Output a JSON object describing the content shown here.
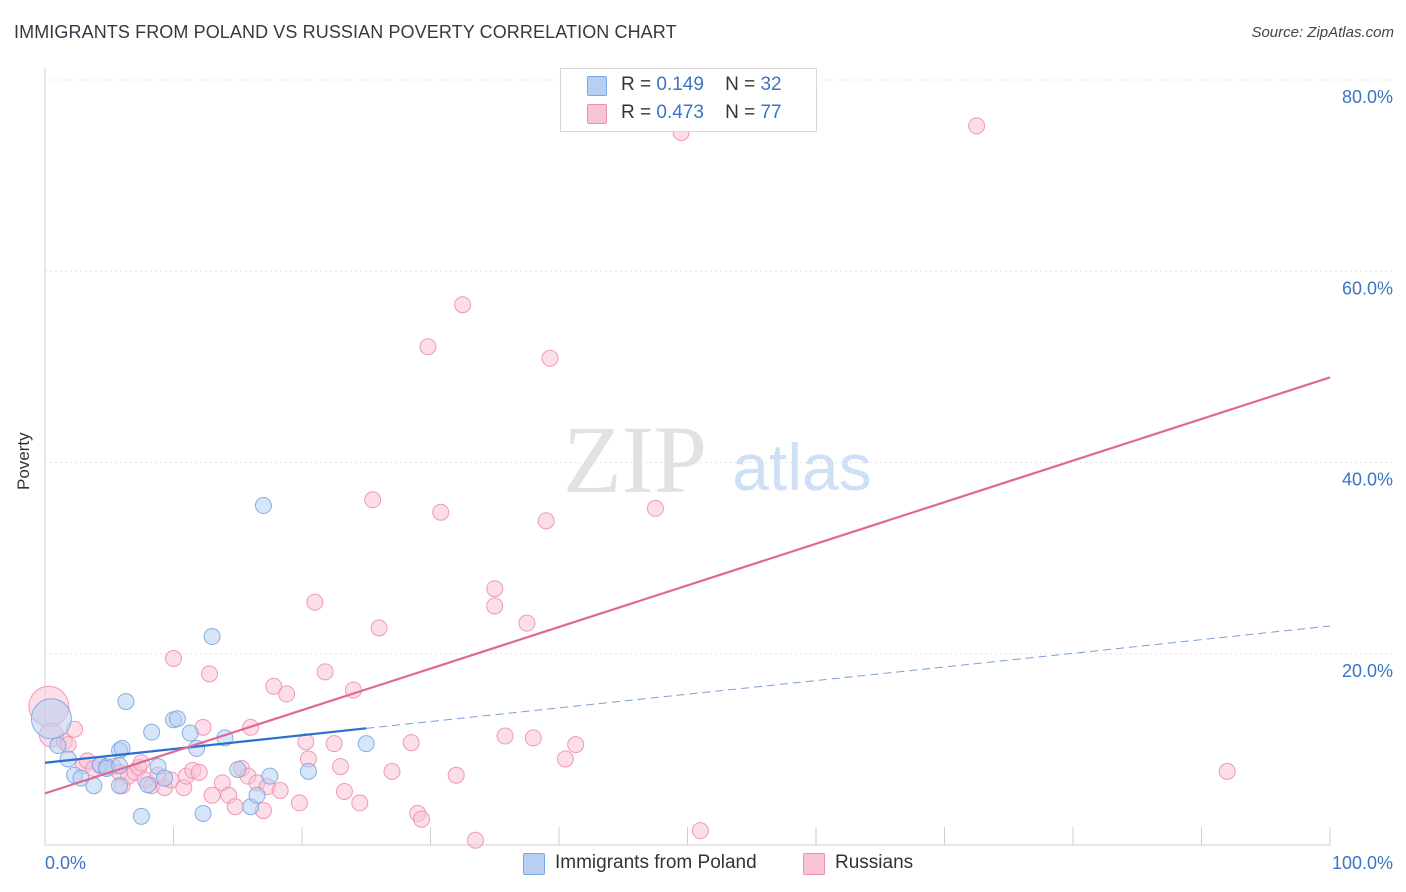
{
  "chart_data": {
    "type": "scatter",
    "title": "IMMIGRANTS FROM POLAND VS RUSSIAN POVERTY CORRELATION CHART",
    "source": "Source: ZipAtlas.com",
    "xlabel": "",
    "ylabel": "Poverty",
    "xlim": [
      0,
      100
    ],
    "ylim": [
      0,
      80
    ],
    "x_tick_labels": [
      "0.0%",
      "100.0%"
    ],
    "y_ticks": [
      20,
      40,
      60,
      80
    ],
    "y_tick_labels": [
      "20.0%",
      "40.0%",
      "60.0%",
      "80.0%"
    ],
    "grid": true,
    "watermark": {
      "zip": "ZIP",
      "atlas": "atlas"
    },
    "legend_stats": [
      {
        "r_label": "R =",
        "r_value": "0.149",
        "n_label": "N =",
        "n_value": "32"
      },
      {
        "r_label": "R =",
        "r_value": "0.473",
        "n_label": "N =",
        "n_value": "77"
      }
    ],
    "series": [
      {
        "name": "Immigrants from Poland",
        "color": "#7aa7e0",
        "fill": "#b7d0f2",
        "trend_color": "#2b6fd0",
        "trend": {
          "x0": 0,
          "y0": 8.6,
          "x1": 25,
          "y1": 12.2,
          "dash_to_x": 100,
          "dash_to_y": 22.9
        },
        "points": [
          [
            0.5,
            13.2,
            2.5
          ],
          [
            1.0,
            10.4,
            1
          ],
          [
            1.8,
            9.0,
            1
          ],
          [
            2.3,
            7.3,
            1
          ],
          [
            2.8,
            7.0,
            1
          ],
          [
            3.8,
            6.2,
            1
          ],
          [
            4.3,
            8.4,
            1
          ],
          [
            4.8,
            8.2,
            1
          ],
          [
            4.8,
            8.0,
            1
          ],
          [
            5.8,
            9.9,
            1
          ],
          [
            6.0,
            10.1,
            1
          ],
          [
            5.8,
            8.3,
            1
          ],
          [
            5.8,
            6.2,
            1
          ],
          [
            6.3,
            15.0,
            1
          ],
          [
            7.5,
            3.0,
            1
          ],
          [
            8.0,
            6.3,
            1
          ],
          [
            8.3,
            11.8,
            1
          ],
          [
            8.8,
            8.2,
            1
          ],
          [
            9.3,
            7.0,
            1
          ],
          [
            10.0,
            13.1,
            1
          ],
          [
            10.3,
            13.2,
            1
          ],
          [
            11.3,
            11.7,
            1
          ],
          [
            11.8,
            10.1,
            1
          ],
          [
            12.3,
            3.3,
            1
          ],
          [
            13.0,
            21.8,
            1
          ],
          [
            14.0,
            11.2,
            1
          ],
          [
            15.0,
            7.9,
            1
          ],
          [
            16.0,
            4.0,
            1
          ],
          [
            16.5,
            5.2,
            1
          ],
          [
            17.0,
            35.5,
            1
          ],
          [
            17.5,
            7.2,
            1
          ],
          [
            20.5,
            7.7,
            1
          ],
          [
            25.0,
            10.6,
            1
          ]
        ]
      },
      {
        "name": "Russians",
        "color": "#ee8fb2",
        "fill": "#f7c3d6",
        "trend_color": "#e06892",
        "trend": {
          "x0": 0,
          "y0": 5.4,
          "x1": 100,
          "y1": 48.9
        },
        "points": [
          [
            0.3,
            14.5,
            2.5
          ],
          [
            0.5,
            11.5,
            1.5
          ],
          [
            1.5,
            10.8,
            1
          ],
          [
            1.8,
            10.5,
            1
          ],
          [
            2.3,
            12.1,
            1
          ],
          [
            3.0,
            8.3,
            1
          ],
          [
            3.3,
            8.8,
            1
          ],
          [
            3.8,
            8.0,
            1
          ],
          [
            4.3,
            8.3,
            1
          ],
          [
            5.3,
            8.2,
            1
          ],
          [
            5.8,
            7.6,
            1
          ],
          [
            6.0,
            6.2,
            1
          ],
          [
            6.5,
            7.2,
            1
          ],
          [
            7.0,
            7.6,
            1
          ],
          [
            7.3,
            8.1,
            1
          ],
          [
            7.5,
            8.6,
            1
          ],
          [
            7.8,
            6.8,
            1
          ],
          [
            8.3,
            6.2,
            1
          ],
          [
            8.8,
            7.3,
            1
          ],
          [
            9.3,
            6.0,
            1
          ],
          [
            9.8,
            6.8,
            1
          ],
          [
            10.0,
            19.5,
            1
          ],
          [
            10.8,
            6.0,
            1
          ],
          [
            11.0,
            7.2,
            1
          ],
          [
            11.5,
            7.8,
            1
          ],
          [
            12.0,
            7.6,
            1
          ],
          [
            12.3,
            12.3,
            1
          ],
          [
            12.8,
            17.9,
            1
          ],
          [
            13.0,
            5.2,
            1
          ],
          [
            13.8,
            6.5,
            1
          ],
          [
            14.3,
            5.2,
            1
          ],
          [
            14.8,
            4.0,
            1
          ],
          [
            15.3,
            8.0,
            1
          ],
          [
            15.8,
            7.2,
            1
          ],
          [
            16.0,
            12.3,
            1
          ],
          [
            16.5,
            6.5,
            1
          ],
          [
            17.0,
            3.6,
            1
          ],
          [
            17.3,
            6.1,
            1
          ],
          [
            17.8,
            16.6,
            1
          ],
          [
            18.3,
            5.7,
            1
          ],
          [
            18.8,
            15.8,
            1
          ],
          [
            19.8,
            4.4,
            1
          ],
          [
            20.3,
            10.8,
            1
          ],
          [
            20.5,
            9.0,
            1
          ],
          [
            21.0,
            25.4,
            1
          ],
          [
            21.8,
            18.1,
            1
          ],
          [
            22.5,
            10.6,
            1
          ],
          [
            23.0,
            8.2,
            1
          ],
          [
            23.3,
            5.6,
            1
          ],
          [
            24.0,
            16.2,
            1
          ],
          [
            24.5,
            4.4,
            1
          ],
          [
            25.5,
            36.1,
            1
          ],
          [
            26.0,
            22.7,
            1
          ],
          [
            27.0,
            7.7,
            1
          ],
          [
            28.5,
            10.7,
            1
          ],
          [
            29.0,
            3.3,
            1
          ],
          [
            29.3,
            2.7,
            1
          ],
          [
            29.8,
            52.1,
            1
          ],
          [
            30.8,
            34.8,
            1
          ],
          [
            32.0,
            7.3,
            1
          ],
          [
            32.5,
            56.5,
            1
          ],
          [
            33.5,
            0.5,
            1
          ],
          [
            35.0,
            26.8,
            1
          ],
          [
            35.0,
            25.0,
            1
          ],
          [
            35.8,
            11.4,
            1
          ],
          [
            37.5,
            23.2,
            1
          ],
          [
            38.0,
            11.2,
            1
          ],
          [
            39.0,
            33.9,
            1
          ],
          [
            39.3,
            50.9,
            1
          ],
          [
            40.5,
            9.0,
            1
          ],
          [
            41.3,
            10.5,
            1
          ],
          [
            47.5,
            35.2,
            1
          ],
          [
            49.5,
            74.5,
            1
          ],
          [
            51.0,
            1.5,
            1
          ],
          [
            72.5,
            75.2,
            1
          ],
          [
            92.0,
            7.7,
            1
          ]
        ]
      }
    ]
  }
}
